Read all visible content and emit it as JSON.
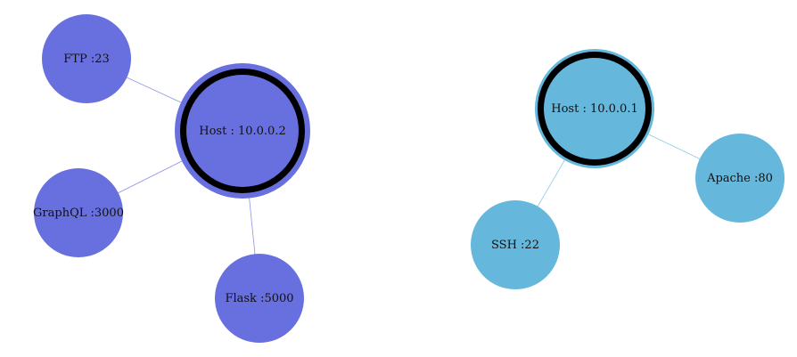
{
  "graph": {
    "groups": [
      {
        "color": "#6870df",
        "host": {
          "label": "Host : 10.0.0.2"
        },
        "services": [
          {
            "label": "FTP :23"
          },
          {
            "label": "GraphQL :3000"
          },
          {
            "label": "Flask :5000"
          }
        ]
      },
      {
        "color": "#66b7dc",
        "host": {
          "label": "Host : 10.0.0.1"
        },
        "services": [
          {
            "label": "SSH :22"
          },
          {
            "label": "Apache :80"
          }
        ]
      }
    ]
  }
}
